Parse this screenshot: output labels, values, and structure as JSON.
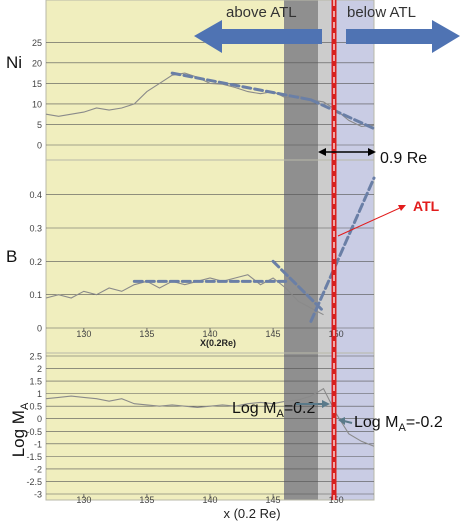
{
  "figure": {
    "header_left": "above ATL",
    "header_right": "below ATL",
    "atl_label": "ATL",
    "width_annotation": "0.9 Re",
    "log_ma_left": "Log M",
    "log_ma_left_sub": "A",
    "log_ma_left_val": "=0.2",
    "log_ma_right": "Log M",
    "log_ma_right_sub": "A",
    "log_ma_right_val": "=-0.2",
    "colors": {
      "above_region": "#f0eebe",
      "below_region": "#c9cce4",
      "dark_band": "#8f8f8f",
      "light_band": "#cccccc",
      "atl_line": "#d81f1f",
      "arrow": "#4f73b3",
      "fit": "#6a7fa6",
      "trace": "#8a8a8a",
      "atl_text": "#e21c1c"
    }
  },
  "chart_data": [
    {
      "type": "line",
      "ylabel": "Ni",
      "ylim": [
        0,
        28
      ],
      "yticks": [
        "0",
        "5",
        "10",
        "15",
        "20",
        "25"
      ],
      "xlim": [
        127,
        153
      ],
      "x": [
        127,
        128,
        129,
        130,
        131,
        132,
        133,
        134,
        135,
        136,
        137,
        138,
        139,
        140,
        141,
        142,
        143,
        144,
        145,
        146,
        147,
        148,
        149,
        150,
        151,
        152,
        153
      ],
      "values": [
        7.5,
        7,
        7.5,
        8,
        9,
        8.5,
        9,
        10,
        13,
        15,
        17,
        17.5,
        16.5,
        15,
        14.8,
        14,
        13,
        12.5,
        13,
        11.5,
        12,
        11,
        10.5,
        8.5,
        6,
        4.5,
        4.8
      ],
      "fit_segments": [
        {
          "x": [
            137,
            148
          ],
          "y": [
            17.5,
            11
          ]
        },
        {
          "x": [
            148,
            153
          ],
          "y": [
            11,
            4
          ]
        }
      ]
    },
    {
      "type": "line",
      "ylabel": "B",
      "ylim": [
        0,
        0.45
      ],
      "yticks": [
        "0",
        "0.1",
        "0.2",
        "0.3",
        "0.4"
      ],
      "xlim": [
        127,
        153
      ],
      "xticks": [
        "130",
        "135",
        "140",
        "145",
        "150"
      ],
      "xlabel": "X(0.2Re)",
      "x": [
        127,
        128,
        129,
        130,
        131,
        132,
        133,
        134,
        135,
        136,
        137,
        138,
        139,
        140,
        141,
        142,
        143,
        144,
        145,
        146,
        147,
        148,
        149
      ],
      "values": [
        0.09,
        0.1,
        0.09,
        0.11,
        0.1,
        0.12,
        0.11,
        0.13,
        0.14,
        0.12,
        0.14,
        0.13,
        0.14,
        0.15,
        0.14,
        0.15,
        0.16,
        0.13,
        0.15,
        0.12,
        0.08,
        0.06,
        0.04
      ],
      "fit_segments": [
        {
          "x": [
            134,
            146
          ],
          "y": [
            0.14,
            0.14
          ]
        },
        {
          "x": [
            145,
            149
          ],
          "y": [
            0.2,
            0.05
          ]
        },
        {
          "x": [
            148,
            153
          ],
          "y": [
            0.02,
            0.45
          ]
        }
      ]
    },
    {
      "type": "line",
      "ylabel": "Log M",
      "ylabel_sub": "A",
      "ylim": [
        -3,
        2.5
      ],
      "yticks": [
        "-3",
        "-2.5",
        "-2",
        "-1.5",
        "-1",
        "-0.5",
        "0",
        "0.5",
        "1",
        "1.5",
        "2",
        "2.5"
      ],
      "xlim": [
        127,
        153
      ],
      "xticks": [
        "130",
        "135",
        "140",
        "145",
        "150"
      ],
      "xlabel": "x (0.2 Re)",
      "x": [
        127,
        128,
        129,
        130,
        131,
        132,
        133,
        134,
        135,
        136,
        137,
        138,
        139,
        140,
        141,
        142,
        143,
        144,
        145,
        146,
        147,
        148,
        149,
        150,
        151,
        152,
        153
      ],
      "values": [
        0.8,
        0.85,
        0.9,
        0.85,
        0.8,
        0.7,
        0.8,
        0.6,
        0.55,
        0.5,
        0.55,
        0.5,
        0.45,
        0.5,
        0.55,
        0.5,
        0.6,
        0.65,
        0.6,
        0.7,
        0.75,
        0.9,
        1.2,
        0.2,
        -0.6,
        -0.9,
        -1.1
      ]
    }
  ]
}
